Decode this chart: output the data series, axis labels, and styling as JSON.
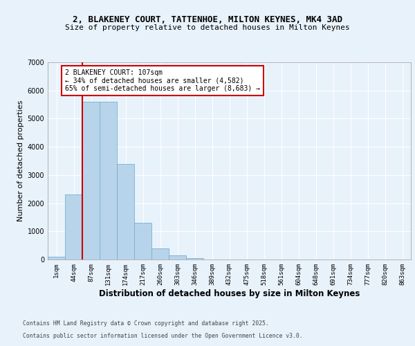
{
  "title_line1": "2, BLAKENEY COURT, TATTENHOE, MILTON KEYNES, MK4 3AD",
  "title_line2": "Size of property relative to detached houses in Milton Keynes",
  "xlabel": "Distribution of detached houses by size in Milton Keynes",
  "ylabel": "Number of detached properties",
  "bar_labels": [
    "1sqm",
    "44sqm",
    "87sqm",
    "131sqm",
    "174sqm",
    "217sqm",
    "260sqm",
    "303sqm",
    "346sqm",
    "389sqm",
    "432sqm",
    "475sqm",
    "518sqm",
    "561sqm",
    "604sqm",
    "648sqm",
    "691sqm",
    "734sqm",
    "777sqm",
    "820sqm",
    "863sqm"
  ],
  "bar_values": [
    100,
    2300,
    5600,
    5600,
    3400,
    1300,
    400,
    150,
    60,
    5,
    0,
    0,
    0,
    0,
    0,
    0,
    0,
    0,
    0,
    0,
    0
  ],
  "bar_color": "#b8d4ea",
  "bar_edge_color": "#7aaed0",
  "red_line_x": 1.5,
  "annotation_title": "2 BLAKENEY COURT: 107sqm",
  "annotation_line2": "← 34% of detached houses are smaller (4,582)",
  "annotation_line3": "65% of semi-detached houses are larger (8,683) →",
  "annotation_box_color": "#ffffff",
  "annotation_box_edge": "#cc0000",
  "footer_line1": "Contains HM Land Registry data © Crown copyright and database right 2025.",
  "footer_line2": "Contains public sector information licensed under the Open Government Licence v3.0.",
  "ylim": [
    0,
    7000
  ],
  "yticks": [
    0,
    1000,
    2000,
    3000,
    4000,
    5000,
    6000,
    7000
  ],
  "bg_color": "#e8f2fb",
  "plot_bg_color": "#e8f2fb",
  "grid_color": "#ffffff",
  "title_fontsize": 9,
  "subtitle_fontsize": 8,
  "axis_label_fontsize": 8,
  "tick_fontsize": 6.5
}
